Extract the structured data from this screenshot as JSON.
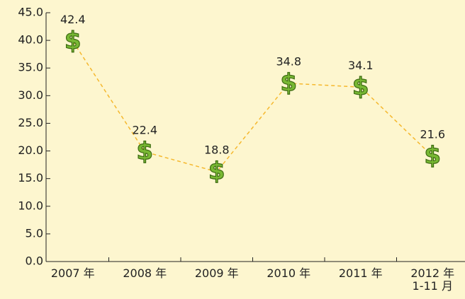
{
  "chart_data": {
    "type": "line",
    "categories": [
      "2007 年",
      "2008 年",
      "2009 年",
      "2010 年",
      "2011 年",
      "2012 年\n1-11 月"
    ],
    "values": [
      42.4,
      22.4,
      18.8,
      34.8,
      34.1,
      21.6
    ],
    "color": "#f5b82e",
    "marker_color": "#78b833",
    "ylim": [
      0,
      45
    ],
    "yticks": [
      {
        "value": 0,
        "label": "0.0"
      },
      {
        "value": 5,
        "label": "5.0"
      },
      {
        "value": 10,
        "label": "10.0"
      },
      {
        "value": 15,
        "label": "15.0"
      },
      {
        "value": 20,
        "label": "20.0"
      },
      {
        "value": 25,
        "label": "25.0"
      },
      {
        "value": 30,
        "label": "30.0"
      },
      {
        "value": 35,
        "label": "35.0"
      },
      {
        "value": 40,
        "label": "40.0"
      },
      {
        "value": 45,
        "label": "45.0"
      }
    ]
  }
}
